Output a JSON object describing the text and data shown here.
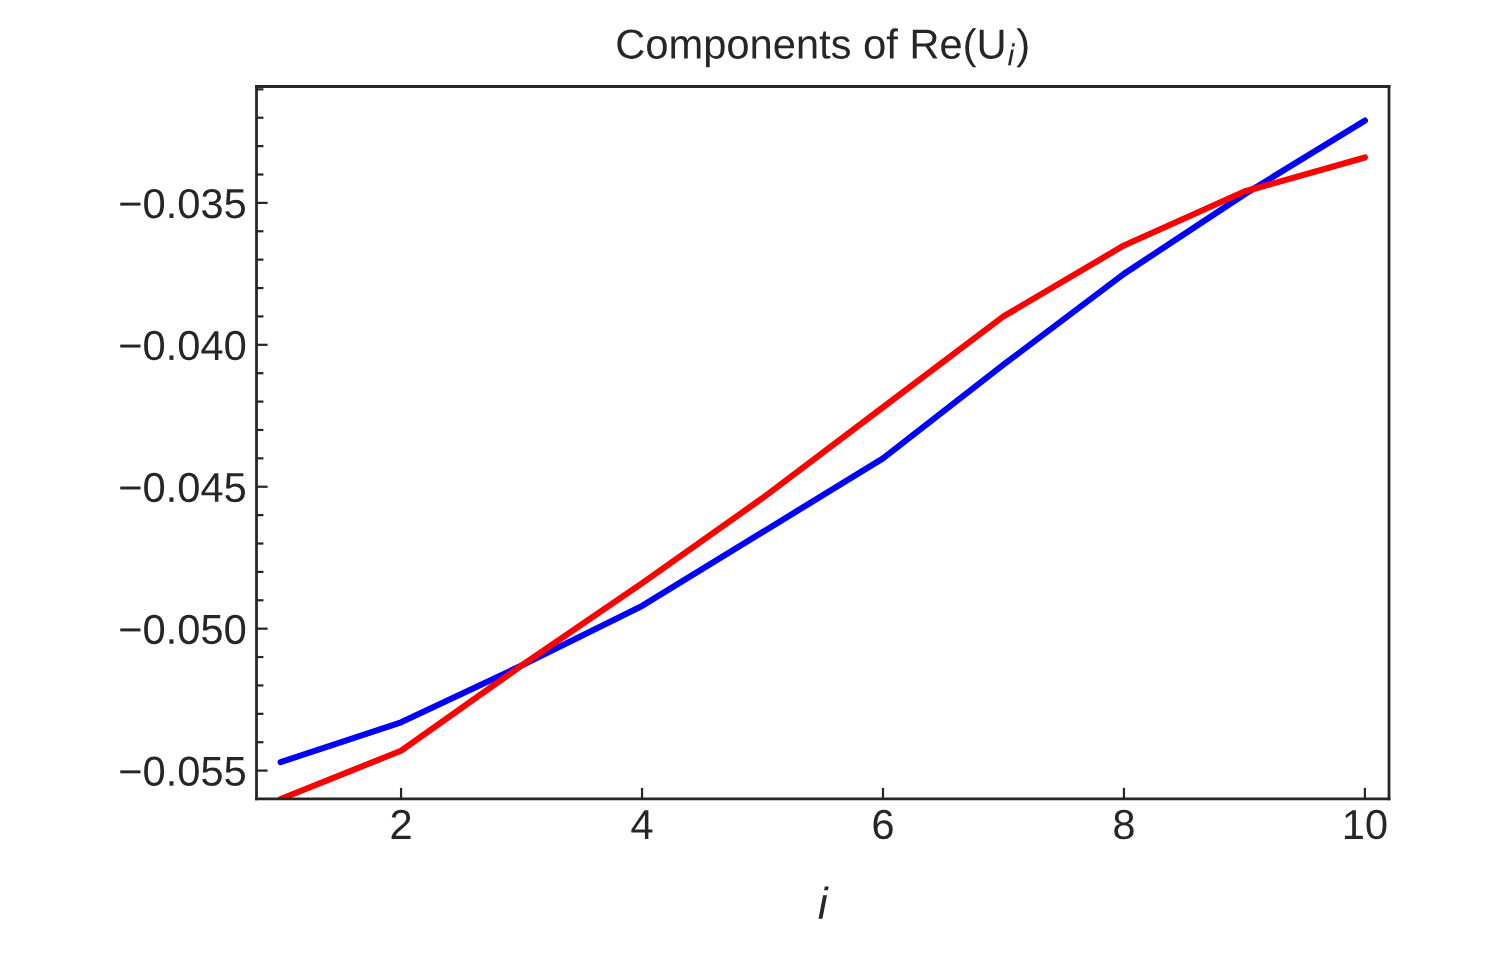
{
  "chart_data": {
    "type": "line",
    "title": "Components of Re(U$_{i}$)",
    "xlabel": "i",
    "x": [
      1,
      2,
      3,
      4,
      5,
      6,
      7,
      8,
      9,
      10
    ],
    "series": [
      {
        "color": "#0000ff",
        "values": [
          -0.0547,
          -0.0533,
          -0.0513,
          -0.0492,
          -0.0466,
          -0.044,
          -0.0407,
          -0.0375,
          -0.0347,
          -0.0321
        ]
      },
      {
        "color": "#ff0000",
        "values": [
          -0.056,
          -0.0543,
          -0.0513,
          -0.0484,
          -0.0454,
          -0.0422,
          -0.039,
          -0.0365,
          -0.0346,
          -0.0334
        ]
      }
    ],
    "xlim": [
      0.8,
      10.2
    ],
    "xticks": [
      2,
      4,
      6,
      8,
      10
    ],
    "ylim": [
      -0.056,
      -0.0309
    ],
    "yticks": [
      {
        "value": -0.055,
        "label": "−0.055"
      },
      {
        "value": -0.054,
        "label": null
      },
      {
        "value": -0.053,
        "label": null
      },
      {
        "value": -0.052,
        "label": null
      },
      {
        "value": -0.051,
        "label": null
      },
      {
        "value": -0.05,
        "label": "−0.050"
      },
      {
        "value": -0.049,
        "label": null
      },
      {
        "value": -0.048,
        "label": null
      },
      {
        "value": -0.047,
        "label": null
      },
      {
        "value": -0.046,
        "label": null
      },
      {
        "value": -0.045,
        "label": "−0.045"
      },
      {
        "value": -0.044,
        "label": null
      },
      {
        "value": -0.043,
        "label": null
      },
      {
        "value": -0.042,
        "label": null
      },
      {
        "value": -0.041,
        "label": null
      },
      {
        "value": -0.04,
        "label": "−0.040"
      },
      {
        "value": -0.039,
        "label": null
      },
      {
        "value": -0.038,
        "label": null
      },
      {
        "value": -0.037,
        "label": null
      },
      {
        "value": -0.036,
        "label": null
      },
      {
        "value": -0.035,
        "label": "−0.035"
      },
      {
        "value": -0.034,
        "label": null
      },
      {
        "value": -0.033,
        "label": null
      },
      {
        "value": -0.032,
        "label": null
      },
      {
        "value": -0.031,
        "label": null
      }
    ],
    "grid": false,
    "legend": false,
    "line_style": "solid"
  }
}
